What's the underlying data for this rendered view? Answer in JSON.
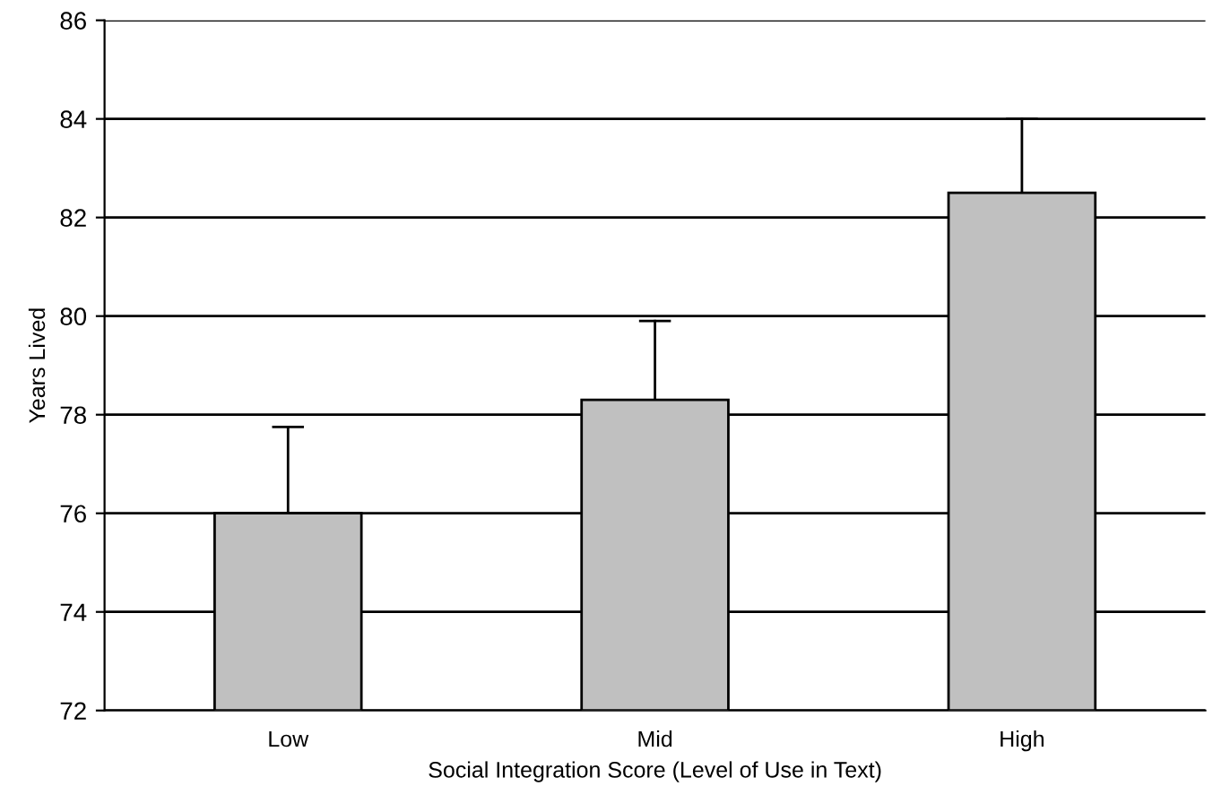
{
  "chart_data": {
    "type": "bar",
    "xlabel": "Social Integration Score (Level of Use in Text)",
    "ylabel": "Years Lived",
    "categories": [
      "Low",
      "Mid",
      "High"
    ],
    "values": [
      76.0,
      78.3,
      82.5
    ],
    "errors": [
      [
        76.0,
        77.75
      ],
      [
        78.3,
        79.9
      ],
      [
        82.5,
        84.0
      ]
    ],
    "color": "#c0c0c0",
    "ylim": [
      72,
      86
    ],
    "yticks": [
      72,
      74,
      76,
      78,
      80,
      82,
      84,
      86
    ],
    "grid": "y",
    "legend": false
  }
}
